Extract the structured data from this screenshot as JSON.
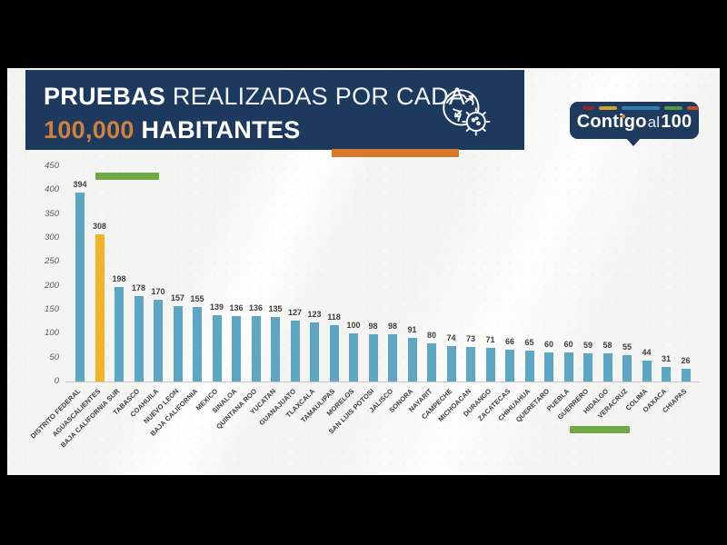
{
  "header": {
    "title_bold": "PRUEBAS",
    "title_rest": " REALIZADAS POR CADA",
    "title2_highlight": "100,000",
    "title2_rest": " HABITANTES",
    "band_color": "#1d3a5e",
    "accent_color": "#d9782a",
    "icon": "globe-virus-icon"
  },
  "logo": {
    "text_main": "Contigo",
    "text_mid": "al",
    "text_num": "100",
    "bg_color": "#1e3a5e",
    "dash_colors": [
      "#8e2434",
      "#d2a129",
      "#2f7fae",
      "#4f9c3d",
      "#c44a2a"
    ]
  },
  "chart_data": {
    "type": "bar",
    "title": "PRUEBAS REALIZADAS POR CADA 100,000 HABITANTES",
    "xlabel": "",
    "ylabel": "",
    "ylim": [
      0,
      450
    ],
    "yticks": [
      0,
      50,
      100,
      150,
      200,
      250,
      300,
      350,
      400,
      450
    ],
    "grid": false,
    "legend_position": "none",
    "value_labels": true,
    "categories": [
      "DISTRITO FEDERAL",
      "AGUASCALIENTES",
      "BAJA CALIFORNIA SUR",
      "TABASCO",
      "COAHUILA",
      "NUEVO LEON",
      "BAJA CALIFORNIA",
      "MEXICO",
      "SINALOA",
      "QUINTANA ROO",
      "YUCATAN",
      "GUANAJUATO",
      "TLAXCALA",
      "TAMAULIPAS",
      "MORELOS",
      "SAN LUIS POTOSI",
      "JALISCO",
      "SONORA",
      "NAYARIT",
      "CAMPECHE",
      "MICHOACAN",
      "DURANGO",
      "ZACATECAS",
      "CHIHUAHUA",
      "QUERETARO",
      "PUEBLA",
      "GUERRERO",
      "HIDALGO",
      "VERACRUZ",
      "COLIMA",
      "OAXACA",
      "CHIAPAS"
    ],
    "values": [
      394,
      308,
      198,
      178,
      170,
      157,
      155,
      139,
      136,
      136,
      135,
      127,
      123,
      118,
      100,
      98,
      98,
      91,
      80,
      74,
      73,
      71,
      66,
      65,
      60,
      60,
      59,
      58,
      55,
      44,
      31,
      26
    ],
    "bar_color": "#5ea7c4",
    "highlight": {
      "index": 1,
      "color": "#f2b324",
      "category": "AGUASCALIENTES"
    },
    "annotations": [
      {
        "type": "green-highlight-bar",
        "color": "#6fa845",
        "location": "above bars AGUASCALIENTES-COAHUILA"
      },
      {
        "type": "green-highlight-bar",
        "color": "#6fa845",
        "location": "below labels GUERRERO-VERACRUZ"
      }
    ]
  }
}
